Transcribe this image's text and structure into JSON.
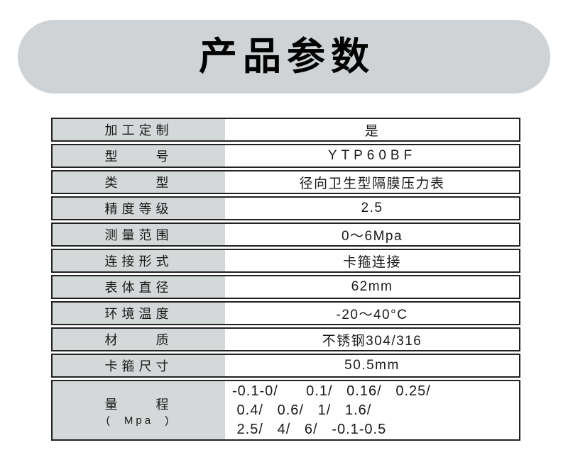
{
  "header": {
    "title": "产品参数"
  },
  "colors": {
    "pill_background": "#cfd3d5",
    "label_cell_background": "#d5d8d9",
    "row_border": "#222222",
    "text": "#111111"
  },
  "table": {
    "rows": [
      {
        "label": "加工定制",
        "value": "是"
      },
      {
        "label": "型　　号",
        "value": "YTP60BF"
      },
      {
        "label": "类　　型",
        "value": "径向卫生型隔膜压力表"
      },
      {
        "label": "精度等级",
        "value": "2.5"
      },
      {
        "label": "测量范围",
        "value": "0～6Mpa"
      },
      {
        "label": "连接形式",
        "value": "卡箍连接"
      },
      {
        "label": "表体直径",
        "value": "62mm"
      },
      {
        "label": "环境温度",
        "value": "-20～40°C"
      },
      {
        "label": "材　　质",
        "value": "不锈钢304/316"
      },
      {
        "label": "卡箍尺寸",
        "value": "50.5mm"
      }
    ],
    "range_row": {
      "label_line1": "量　　程",
      "label_line2": "(  Mpa  )",
      "value_line1": "-0.1-0/      0.1/   0.16/   0.25/",
      "value_line2": " 0.4/   0.6/   1/   1.6/",
      "value_line3": " 2.5/   4/   6/   -0.1-0.5"
    }
  }
}
